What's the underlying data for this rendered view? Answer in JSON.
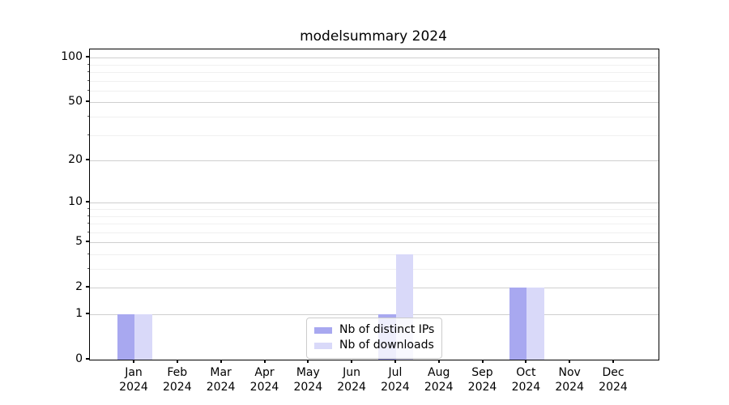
{
  "chart_data": {
    "type": "bar",
    "title": "modelsummary 2024",
    "categories": [
      "Jan",
      "Feb",
      "Mar",
      "Apr",
      "May",
      "Jun",
      "Jul",
      "Aug",
      "Sep",
      "Oct",
      "Nov",
      "Dec"
    ],
    "category_year": "2024",
    "series": [
      {
        "name": "Nb of distinct IPs",
        "color": "#a8a8f0",
        "values": [
          1,
          0,
          0,
          0,
          0,
          0,
          1,
          0,
          0,
          2,
          0,
          0
        ]
      },
      {
        "name": "Nb of downloads",
        "color": "#d9d9f9",
        "values": [
          1,
          0,
          0,
          0,
          0,
          0,
          4,
          0,
          0,
          2,
          0,
          0
        ]
      }
    ],
    "xlabel": "",
    "ylabel": "",
    "yscale": "log1p",
    "ylim": [
      0,
      113.5
    ],
    "y_ticks": [
      0,
      1,
      2,
      5,
      10,
      20,
      50,
      100
    ],
    "y_minor_ticks": [
      3,
      4,
      6,
      7,
      8,
      9,
      30,
      40,
      60,
      70,
      80,
      90
    ],
    "grid": "horizontal major+minor",
    "legend_position": "lower center"
  }
}
